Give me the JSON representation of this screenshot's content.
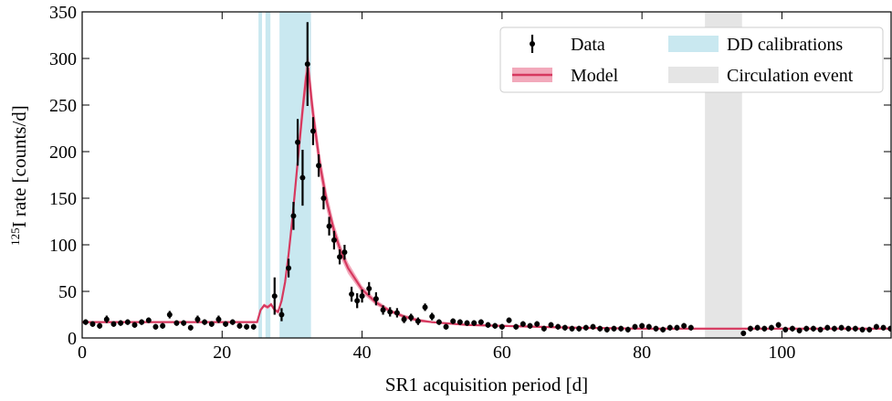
{
  "chart_data": {
    "type": "errorbar",
    "xlabel": "SR1 acquisition period [d]",
    "ylabel_sup": "125",
    "ylabel": "I rate [counts/d]",
    "xlim": [
      0,
      115.6
    ],
    "ylim": [
      0,
      350
    ],
    "xticks": [
      0,
      20,
      40,
      60,
      80,
      100
    ],
    "yticks": [
      0,
      50,
      100,
      150,
      200,
      250,
      300,
      350
    ],
    "legend": "upper right",
    "series": [
      {
        "name": "Data",
        "color": "#000000",
        "x": [
          0.5,
          1.5,
          2.5,
          3.5,
          4.5,
          5.5,
          6.5,
          7.5,
          8.5,
          9.5,
          10.5,
          11.5,
          12.5,
          13.5,
          14.5,
          15.5,
          16.5,
          17.5,
          18.5,
          19.5,
          20.5,
          21.5,
          22.5,
          23.5,
          24.5,
          27.5,
          28.5,
          29.5,
          30.2,
          30.8,
          31.5,
          32.2,
          33,
          33.8,
          34.5,
          35.3,
          36,
          36.8,
          37.5,
          38.5,
          39.3,
          40,
          41,
          42,
          43,
          44,
          45,
          46,
          47,
          48,
          49,
          50,
          51,
          52,
          53,
          54,
          55,
          56,
          57,
          58,
          59,
          60,
          61,
          62,
          63,
          64,
          65,
          66,
          67,
          68,
          69,
          70,
          71,
          72,
          73,
          74,
          75,
          76,
          77,
          78,
          79,
          80,
          81,
          82,
          83,
          84,
          85,
          86,
          87,
          94.5,
          95.5,
          96.5,
          97.5,
          98.5,
          99.5,
          100.5,
          101.5,
          102.5,
          103.5,
          104.5,
          105.5,
          106.5,
          107.5,
          108.5,
          109.5,
          110.5,
          111.5,
          112.5,
          113.5,
          114.5,
          115.5
        ],
        "values": [
          17,
          15,
          13,
          20,
          15,
          16,
          17,
          14,
          17,
          19,
          12,
          13,
          25,
          16,
          16,
          11,
          20,
          17,
          15,
          20,
          15,
          17,
          13,
          12,
          12,
          45,
          25,
          75,
          131,
          210,
          172,
          294,
          222,
          185,
          150,
          120,
          105,
          87,
          92,
          47,
          40,
          45,
          53,
          42,
          30,
          28,
          27,
          20,
          22,
          18,
          33,
          23,
          17,
          12,
          18,
          17,
          16,
          16,
          17,
          14,
          13,
          12,
          19,
          12,
          15,
          13,
          15,
          10,
          14,
          12,
          11,
          10,
          10,
          11,
          12,
          10,
          9,
          10,
          10,
          9,
          12,
          13,
          12,
          10,
          9,
          11,
          11,
          13,
          11,
          5,
          10,
          11,
          10,
          11,
          14,
          9,
          10,
          8,
          10,
          10,
          9,
          11,
          10,
          11,
          10,
          10,
          9,
          9,
          12,
          11,
          10
        ],
        "errors": [
          3,
          3,
          3,
          4,
          3,
          3,
          3,
          3,
          3,
          3,
          3,
          3,
          4,
          3,
          3,
          3,
          4,
          3,
          3,
          4,
          3,
          3,
          3,
          3,
          3,
          20,
          7,
          10,
          15,
          25,
          30,
          45,
          15,
          12,
          12,
          10,
          10,
          8,
          8,
          8,
          8,
          7,
          7,
          7,
          5,
          5,
          5,
          4,
          4,
          4,
          4,
          4,
          3,
          3,
          3,
          3,
          3,
          3,
          3,
          3,
          3,
          3,
          3,
          3,
          3,
          3,
          3,
          3,
          3,
          3,
          3,
          3,
          3,
          3,
          3,
          3,
          3,
          3,
          3,
          3,
          3,
          3,
          3,
          3,
          3,
          3,
          3,
          3,
          3,
          3,
          3,
          3,
          3,
          3,
          3,
          3,
          3,
          3,
          3,
          3,
          3,
          3,
          3,
          3,
          3,
          3,
          3,
          3,
          3,
          3,
          3
        ]
      },
      {
        "name": "Model",
        "color": "#d6395f",
        "band_color": "#f2a9bb",
        "x": [
          0,
          25,
          25.5,
          26,
          26.5,
          27,
          27.5,
          28,
          28.5,
          29,
          29.5,
          30,
          30.5,
          31,
          31.5,
          32,
          32.3,
          33,
          34,
          35,
          36,
          37,
          38,
          40,
          42,
          44,
          46,
          48,
          50,
          55,
          60,
          70,
          80,
          90,
          100,
          115.6
        ],
        "values": [
          17,
          17,
          30,
          35,
          33,
          36,
          30,
          28,
          40,
          60,
          90,
          125,
          165,
          205,
          245,
          280,
          290,
          240,
          185,
          145,
          115,
          92,
          75,
          52,
          38,
          29,
          23,
          19,
          17,
          14,
          13,
          11,
          10,
          10,
          10,
          10
        ],
        "errors": [
          1,
          1,
          2,
          2,
          2,
          2,
          2,
          2,
          3,
          4,
          6,
          8,
          10,
          12,
          14,
          16,
          17,
          14,
          12,
          10,
          8,
          7,
          6,
          4,
          3,
          2,
          2,
          2,
          1,
          1,
          1,
          1,
          1,
          1,
          1,
          1
        ]
      }
    ],
    "regions": [
      {
        "name": "DD calibrations",
        "color": "#c9e8f0",
        "spans": [
          [
            25.2,
            25.7
          ],
          [
            26.2,
            26.9
          ],
          [
            28.2,
            32.7
          ]
        ]
      },
      {
        "name": "Circulation event",
        "color": "#e5e5e5",
        "spans": [
          [
            89.0,
            94.3
          ]
        ]
      }
    ]
  }
}
